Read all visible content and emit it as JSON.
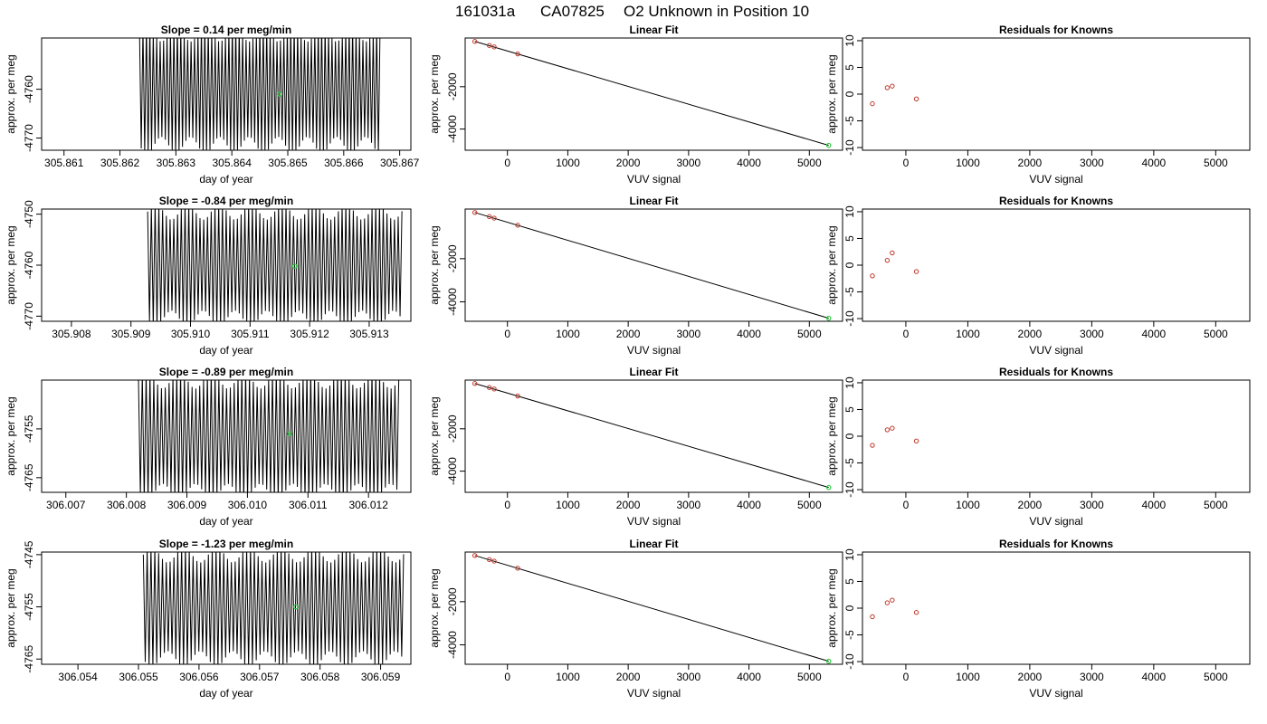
{
  "title": {
    "run": "161031a",
    "tank": "CA07825",
    "label": "O2 Unknown in Position  10"
  },
  "colors": {
    "trace": "#000000",
    "known_point": "#c0392b",
    "unknown_point": "#2ecc40",
    "fit_line": "#000000"
  },
  "chart_data": [
    {
      "type": "line",
      "row": 0,
      "title": "Slope =  0.14  per meg/min",
      "xlabel": "day of year",
      "ylabel": "approx. per meg",
      "xlim": [
        305.8606,
        305.8672
      ],
      "ylim": [
        -4772.5,
        -4749.5
      ],
      "xticks": [
        "305.861",
        "305.862",
        "305.863",
        "305.864",
        "305.865",
        "305.866",
        "305.867"
      ],
      "xtick_values": [
        305.861,
        305.862,
        305.863,
        305.864,
        305.865,
        305.866,
        305.867
      ],
      "yticks": [
        "-4760",
        "-4770"
      ],
      "ytick_values": [
        -4760,
        -4770
      ],
      "trace": {
        "x_start": 305.86235,
        "x_end": 305.86665,
        "center": -4760.0,
        "amplitude": 11.5,
        "cycles": 70
      },
      "unknown_point": {
        "x": 305.86485,
        "y": -4761.0
      }
    },
    {
      "type": "scatter",
      "row": 0,
      "title": "Linear Fit",
      "xlabel": "VUV signal",
      "ylabel": "approx. per meg",
      "xlim": [
        -700,
        5550
      ],
      "ylim": [
        -5000,
        300
      ],
      "xticks": [
        "0",
        "1000",
        "2000",
        "3000",
        "4000",
        "5000"
      ],
      "xtick_values": [
        0,
        1000,
        2000,
        3000,
        4000,
        5000
      ],
      "yticks": [
        "-2000",
        "-4000"
      ],
      "ytick_values": [
        -2000,
        -4000
      ],
      "known_points": [
        {
          "x": -540,
          "y": 140
        },
        {
          "x": -300,
          "y": -50
        },
        {
          "x": -220,
          "y": -120
        },
        {
          "x": 170,
          "y": -450
        }
      ],
      "unknown_point": {
        "x": 5320,
        "y": -4770
      },
      "fit_line": {
        "x": [
          -540,
          5320
        ],
        "y": [
          140,
          -4770
        ]
      }
    },
    {
      "type": "scatter",
      "row": 0,
      "title": "Residuals for Knowns",
      "xlabel": "VUV signal",
      "ylabel": "approx. per meg",
      "xlim": [
        -700,
        5550
      ],
      "ylim": [
        -10.5,
        10.5
      ],
      "xticks": [
        "0",
        "1000",
        "2000",
        "3000",
        "4000",
        "5000"
      ],
      "xtick_values": [
        0,
        1000,
        2000,
        3000,
        4000,
        5000
      ],
      "yticks": [
        "-10",
        "-5",
        "0",
        "5",
        "10"
      ],
      "ytick_values": [
        -10,
        -5,
        0,
        5,
        10
      ],
      "known_points": [
        {
          "x": -540,
          "y": -1.8
        },
        {
          "x": -300,
          "y": 1.2
        },
        {
          "x": -220,
          "y": 1.5
        },
        {
          "x": 170,
          "y": -0.9
        }
      ]
    },
    {
      "type": "line",
      "row": 1,
      "title": "Slope =  -0.84  per meg/min",
      "xlabel": "day of year",
      "ylabel": "approx. per meg",
      "xlim": [
        305.9075,
        305.9137
      ],
      "ylim": [
        -4771,
        -4749
      ],
      "xticks": [
        "305.908",
        "305.909",
        "305.910",
        "305.911",
        "305.912",
        "305.913"
      ],
      "xtick_values": [
        305.908,
        305.909,
        305.91,
        305.911,
        305.912,
        305.913
      ],
      "yticks": [
        "-4750",
        "-4760",
        "-4770"
      ],
      "ytick_values": [
        -4750,
        -4760,
        -4770
      ],
      "trace": {
        "x_start": 305.90928,
        "x_end": 305.91355,
        "center": -4760.0,
        "amplitude": 10.5,
        "cycles": 68
      },
      "unknown_point": {
        "x": 305.91175,
        "y": -4760.2
      }
    },
    {
      "type": "scatter",
      "row": 1,
      "title": "Linear Fit",
      "xlabel": "VUV signal",
      "ylabel": "approx. per meg",
      "xlim": [
        -700,
        5550
      ],
      "ylim": [
        -4900,
        300
      ],
      "xticks": [
        "0",
        "1000",
        "2000",
        "3000",
        "4000",
        "5000"
      ],
      "xtick_values": [
        0,
        1000,
        2000,
        3000,
        4000,
        5000
      ],
      "yticks": [
        "-2000",
        "-4000"
      ],
      "ytick_values": [
        -2000,
        -4000
      ],
      "known_points": [
        {
          "x": -540,
          "y": 140
        },
        {
          "x": -300,
          "y": -50
        },
        {
          "x": -220,
          "y": -120
        },
        {
          "x": 170,
          "y": -450
        }
      ],
      "unknown_point": {
        "x": 5320,
        "y": -4760
      },
      "fit_line": {
        "x": [
          -540,
          5320
        ],
        "y": [
          140,
          -4760
        ]
      }
    },
    {
      "type": "scatter",
      "row": 1,
      "title": "Residuals for Knowns",
      "xlabel": "VUV signal",
      "ylabel": "approx. per meg",
      "xlim": [
        -700,
        5550
      ],
      "ylim": [
        -10.5,
        10.5
      ],
      "xticks": [
        "0",
        "1000",
        "2000",
        "3000",
        "4000",
        "5000"
      ],
      "xtick_values": [
        0,
        1000,
        2000,
        3000,
        4000,
        5000
      ],
      "yticks": [
        "-10",
        "-5",
        "0",
        "5",
        "10"
      ],
      "ytick_values": [
        -10,
        -5,
        0,
        5,
        10
      ],
      "known_points": [
        {
          "x": -540,
          "y": -2.0
        },
        {
          "x": -300,
          "y": 0.9
        },
        {
          "x": -220,
          "y": 2.3
        },
        {
          "x": 170,
          "y": -1.2
        }
      ]
    },
    {
      "type": "line",
      "row": 2,
      "title": "Slope =  -0.89  per meg/min",
      "xlabel": "day of year",
      "ylabel": "approx. per meg",
      "xlim": [
        306.0066,
        306.0127
      ],
      "ylim": [
        -4768,
        -4745
      ],
      "xticks": [
        "306.007",
        "306.008",
        "306.009",
        "306.010",
        "306.011",
        "306.012"
      ],
      "xtick_values": [
        306.007,
        306.008,
        306.009,
        306.01,
        306.011,
        306.012
      ],
      "yticks": [
        "-4755",
        "-4765"
      ],
      "ytick_values": [
        -4755,
        -4765
      ],
      "trace": {
        "x_start": 306.0082,
        "x_end": 306.0125,
        "center": -4756.5,
        "amplitude": 11.5,
        "cycles": 68
      },
      "unknown_point": {
        "x": 306.0107,
        "y": -4756.0
      }
    },
    {
      "type": "scatter",
      "row": 2,
      "title": "Linear Fit",
      "xlabel": "VUV signal",
      "ylabel": "approx. per meg",
      "xlim": [
        -700,
        5550
      ],
      "ylim": [
        -5000,
        300
      ],
      "xticks": [
        "0",
        "1000",
        "2000",
        "3000",
        "4000",
        "5000"
      ],
      "xtick_values": [
        0,
        1000,
        2000,
        3000,
        4000,
        5000
      ],
      "yticks": [
        "-2000",
        "-4000"
      ],
      "ytick_values": [
        -2000,
        -4000
      ],
      "known_points": [
        {
          "x": -540,
          "y": 140
        },
        {
          "x": -300,
          "y": -50
        },
        {
          "x": -220,
          "y": -120
        },
        {
          "x": 170,
          "y": -450
        }
      ],
      "unknown_point": {
        "x": 5320,
        "y": -4770
      },
      "fit_line": {
        "x": [
          -540,
          5320
        ],
        "y": [
          140,
          -4770
        ]
      }
    },
    {
      "type": "scatter",
      "row": 2,
      "title": "Residuals for Knowns",
      "xlabel": "VUV signal",
      "ylabel": "approx. per meg",
      "xlim": [
        -700,
        5550
      ],
      "ylim": [
        -10.5,
        10.5
      ],
      "xticks": [
        "0",
        "1000",
        "2000",
        "3000",
        "4000",
        "5000"
      ],
      "xtick_values": [
        0,
        1000,
        2000,
        3000,
        4000,
        5000
      ],
      "yticks": [
        "-10",
        "-5",
        "0",
        "5",
        "10"
      ],
      "ytick_values": [
        -10,
        -5,
        0,
        5,
        10
      ],
      "known_points": [
        {
          "x": -540,
          "y": -1.7
        },
        {
          "x": -300,
          "y": 1.2
        },
        {
          "x": -220,
          "y": 1.5
        },
        {
          "x": 170,
          "y": -0.9
        }
      ]
    },
    {
      "type": "line",
      "row": 3,
      "title": "Slope =  -1.23  per meg/min",
      "xlabel": "day of year",
      "ylabel": "approx. per meg",
      "xlim": [
        306.0534,
        306.0595
      ],
      "ylim": [
        -4766,
        -4744.5
      ],
      "xticks": [
        "306.054",
        "306.055",
        "306.056",
        "306.057",
        "306.058",
        "306.059"
      ],
      "xtick_values": [
        306.054,
        306.055,
        306.056,
        306.057,
        306.058,
        306.059
      ],
      "yticks": [
        "-4745",
        "-4755",
        "-4765"
      ],
      "ytick_values": [
        -4745,
        -4755,
        -4765
      ],
      "trace": {
        "x_start": 306.05508,
        "x_end": 306.05938,
        "center": -4755.0,
        "amplitude": 10.0,
        "cycles": 68
      },
      "unknown_point": {
        "x": 306.0576,
        "y": -4755.0
      }
    },
    {
      "type": "scatter",
      "row": 3,
      "title": "Linear Fit",
      "xlabel": "VUV signal",
      "ylabel": "approx. per meg",
      "xlim": [
        -700,
        5550
      ],
      "ylim": [
        -4900,
        300
      ],
      "xticks": [
        "0",
        "1000",
        "2000",
        "3000",
        "4000",
        "5000"
      ],
      "xtick_values": [
        0,
        1000,
        2000,
        3000,
        4000,
        5000
      ],
      "yticks": [
        "-2000",
        "-4000"
      ],
      "ytick_values": [
        -2000,
        -4000
      ],
      "known_points": [
        {
          "x": -540,
          "y": 140
        },
        {
          "x": -300,
          "y": -50
        },
        {
          "x": -220,
          "y": -120
        },
        {
          "x": 170,
          "y": -450
        }
      ],
      "unknown_point": {
        "x": 5320,
        "y": -4760
      },
      "fit_line": {
        "x": [
          -540,
          5320
        ],
        "y": [
          140,
          -4760
        ]
      }
    },
    {
      "type": "scatter",
      "row": 3,
      "title": "Residuals for Knowns",
      "xlabel": "VUV signal",
      "ylabel": "approx. per meg",
      "xlim": [
        -700,
        5550
      ],
      "ylim": [
        -10.5,
        10.5
      ],
      "xticks": [
        "0",
        "1000",
        "2000",
        "3000",
        "4000",
        "5000"
      ],
      "xtick_values": [
        0,
        1000,
        2000,
        3000,
        4000,
        5000
      ],
      "yticks": [
        "-10",
        "-5",
        "0",
        "5",
        "10"
      ],
      "ytick_values": [
        -10,
        -5,
        0,
        5,
        10
      ],
      "known_points": [
        {
          "x": -540,
          "y": -1.6
        },
        {
          "x": -300,
          "y": 1.0
        },
        {
          "x": -220,
          "y": 1.5
        },
        {
          "x": 170,
          "y": -0.8
        }
      ]
    }
  ]
}
